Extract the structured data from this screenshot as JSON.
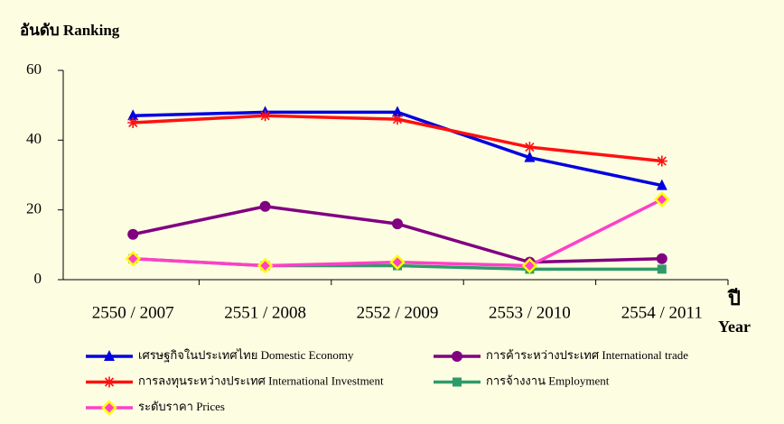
{
  "chart_data": {
    "type": "line",
    "title": "อันดับ  Ranking",
    "x_label_1": "ปี",
    "x_label_2": "Year",
    "categories": [
      "2550 / 2007",
      "2551 / 2008",
      "2552 / 2009",
      "2553 / 2010",
      "2554 / 2011"
    ],
    "series": [
      {
        "name": "เศรษฐกิจในประเทศไทย Domestic Economy",
        "color": "#0000e0",
        "marker": "triangle",
        "values": [
          47,
          48,
          48,
          35,
          27
        ]
      },
      {
        "name": "การค้าระหว่างประเทศ International trade",
        "color": "#800080",
        "marker": "circle",
        "values": [
          13,
          21,
          16,
          5,
          6
        ]
      },
      {
        "name": "การลงทุนระหว่างประเทศ International Investment",
        "color": "#ff1010",
        "marker": "asterisk",
        "values": [
          45,
          47,
          46,
          38,
          34
        ]
      },
      {
        "name": "การจ้างงาน Employment",
        "color": "#2e9a6a",
        "marker": "square",
        "values": [
          6,
          4,
          4,
          3,
          3
        ]
      },
      {
        "name": "ระดับราคา Prices",
        "color": "#ff40c8",
        "marker": "diamond",
        "values": [
          6,
          4,
          5,
          4,
          23
        ]
      }
    ],
    "ylim": [
      0,
      60
    ],
    "yticks": [
      0,
      20,
      40,
      60
    ],
    "grid": false
  }
}
